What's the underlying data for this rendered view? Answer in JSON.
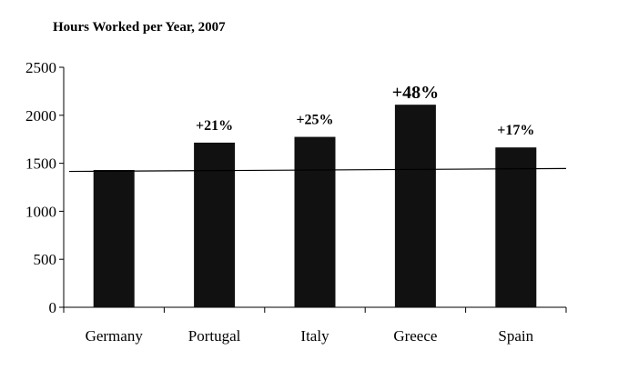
{
  "chart_data": {
    "type": "bar",
    "title": "Hours Worked per Year, 2007",
    "xlabel": "",
    "ylabel": "",
    "categories": [
      "Germany",
      "Portugal",
      "Italy",
      "Greece",
      "Spain"
    ],
    "values": [
      1430,
      1715,
      1775,
      2110,
      1665
    ],
    "data_labels": [
      "",
      "+21%",
      "+25%",
      "+48%",
      "+17%"
    ],
    "highlight_label_index": 3,
    "ylim": [
      0,
      2500
    ],
    "yticks": [
      0,
      500,
      1000,
      1500,
      2000,
      2500
    ],
    "reference_line": {
      "from": 1415,
      "to": 1445
    },
    "grid": false,
    "legend": "none",
    "colors": {
      "bar": "#111111",
      "axis": "#000000",
      "line": "#000000"
    }
  }
}
